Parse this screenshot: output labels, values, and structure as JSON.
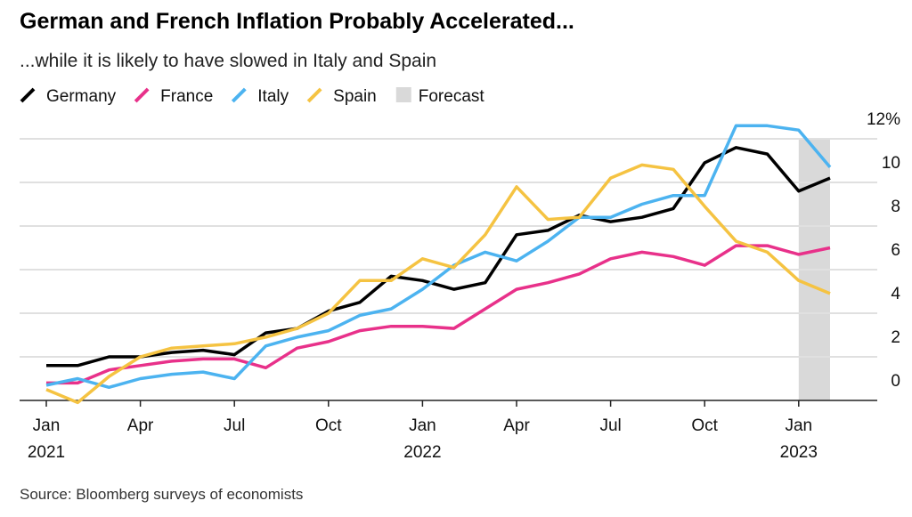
{
  "chart_data": {
    "type": "line",
    "title": "German and French Inflation Probably Accelerated...",
    "subtitle": "...while it is likely to have slowed in Italy and Spain",
    "source": "Source: Bloomberg surveys of economists",
    "x": [
      "2021-01",
      "2021-02",
      "2021-03",
      "2021-04",
      "2021-05",
      "2021-06",
      "2021-07",
      "2021-08",
      "2021-09",
      "2021-10",
      "2021-11",
      "2021-12",
      "2022-01",
      "2022-02",
      "2022-03",
      "2022-04",
      "2022-05",
      "2022-06",
      "2022-07",
      "2022-08",
      "2022-09",
      "2022-10",
      "2022-11",
      "2022-12",
      "2023-01",
      "2023-02"
    ],
    "series": [
      {
        "name": "Germany",
        "color": "#000000",
        "values": [
          1.6,
          1.6,
          2.0,
          2.0,
          2.2,
          2.3,
          2.1,
          3.1,
          3.3,
          4.1,
          4.5,
          5.7,
          5.5,
          5.1,
          5.4,
          7.6,
          7.8,
          8.5,
          8.2,
          8.4,
          8.8,
          10.9,
          11.6,
          11.3,
          9.6,
          10.2
        ]
      },
      {
        "name": "France",
        "color": "#e8318a",
        "values": [
          0.8,
          0.8,
          1.4,
          1.6,
          1.8,
          1.9,
          1.9,
          1.5,
          2.4,
          2.7,
          3.2,
          3.4,
          3.4,
          3.3,
          4.2,
          5.1,
          5.4,
          5.8,
          6.5,
          6.8,
          6.6,
          6.2,
          7.1,
          7.1,
          6.7,
          7.0
        ]
      },
      {
        "name": "Italy",
        "color": "#4cb3f0",
        "values": [
          0.7,
          1.0,
          0.6,
          1.0,
          1.2,
          1.3,
          1.0,
          2.5,
          2.9,
          3.2,
          3.9,
          4.2,
          5.1,
          6.2,
          6.8,
          6.4,
          7.3,
          8.4,
          8.4,
          9.0,
          9.4,
          9.4,
          12.6,
          12.6,
          12.4,
          10.7
        ]
      },
      {
        "name": "Spain",
        "color": "#f5c342",
        "values": [
          0.5,
          -0.1,
          1.1,
          2.0,
          2.4,
          2.5,
          2.6,
          2.9,
          3.3,
          4.0,
          5.5,
          5.5,
          6.5,
          6.1,
          7.6,
          9.8,
          8.3,
          8.4,
          10.2,
          10.8,
          10.6,
          8.9,
          7.3,
          6.8,
          5.5,
          4.9
        ]
      }
    ],
    "forecast": {
      "name": "Forecast",
      "from": "2023-01",
      "to": "2023-02",
      "color": "#d9d9d9"
    },
    "ylim": [
      -1,
      13
    ],
    "yticks": [
      0,
      2,
      4,
      6,
      8,
      10,
      {
        "value": 12,
        "label": "12%"
      }
    ],
    "xticks": [
      {
        "value": "2021-01",
        "label": "Jan 2021"
      },
      {
        "value": "2021-04",
        "label": "Apr"
      },
      {
        "value": "2021-07",
        "label": "Jul"
      },
      {
        "value": "2021-10",
        "label": "Oct"
      },
      {
        "value": "2022-01",
        "label": "Jan 2022"
      },
      {
        "value": "2022-04",
        "label": "Apr"
      },
      {
        "value": "2022-07",
        "label": "Jul"
      },
      {
        "value": "2022-10",
        "label": "Oct"
      },
      {
        "value": "2023-01",
        "label": "Jan 2023"
      }
    ],
    "grid": true
  }
}
